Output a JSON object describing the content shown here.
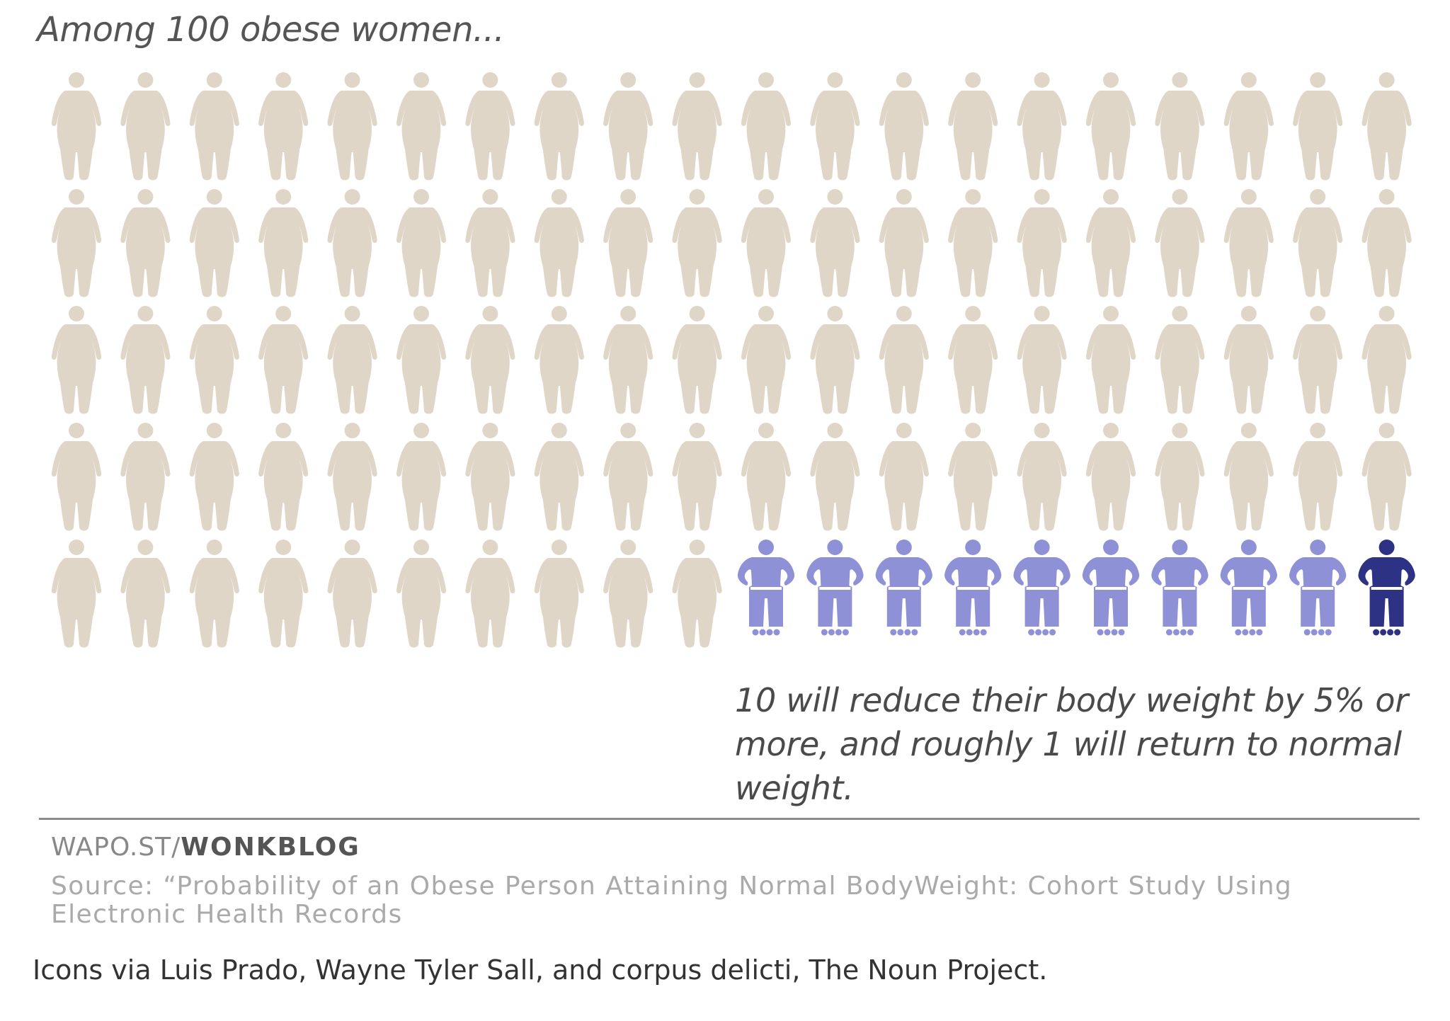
{
  "chart_data": {
    "type": "pictogram",
    "title": "Among 100 obese women...",
    "total": 100,
    "rows": 5,
    "columns": 20,
    "groups": [
      {
        "count": 90,
        "color": "#e0d6c8",
        "icon": "obese-woman-icon"
      },
      {
        "count": 9,
        "color": "#8f91d6",
        "icon": "slim-woman-icon"
      },
      {
        "count": 1,
        "color": "#2e3285",
        "icon": "slim-woman-icon"
      }
    ],
    "annotation": "10 will reduce their body weight by 5% or more, and roughly 1 will return to normal weight."
  },
  "footer": {
    "credit_prefix": "WAPO.ST/",
    "credit_bold": "WONKBLOG",
    "source": "Source: “Probability of an Obese Person Attaining Normal BodyWeight: Cohort Study Using Electronic Health Records",
    "icons_credit": "Icons via Luis Prado, Wayne Tyler Sall, and corpus delicti, The Noun Project."
  }
}
